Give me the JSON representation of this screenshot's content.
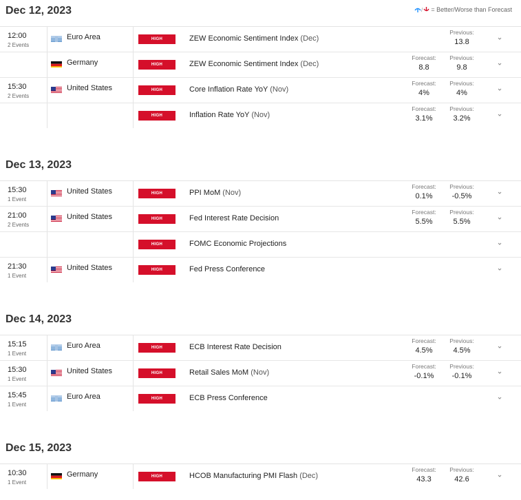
{
  "legend": {
    "text": "= Better/Worse than Forecast",
    "better_color": "#1e90ff",
    "worse_color": "#d50f2a"
  },
  "forecast_label": "Forecast:",
  "previous_label": "Previous:",
  "impact_label": "HIGH",
  "days": [
    {
      "date": "Dec 12, 2023",
      "rows": [
        {
          "time": "12:00",
          "count": "2 Events",
          "flag": "eu",
          "country": "Euro Area",
          "title": "ZEW Economic Sentiment Index",
          "period": "(Dec)",
          "forecast": null,
          "previous": "13.8"
        },
        {
          "time": "",
          "count": "",
          "flag": "de",
          "country": "Germany",
          "title": "ZEW Economic Sentiment Index",
          "period": "(Dec)",
          "forecast": "8.8",
          "previous": "9.8"
        },
        {
          "time": "15:30",
          "count": "2 Events",
          "flag": "us",
          "country": "United States",
          "title": "Core Inflation Rate YoY",
          "period": "(Nov)",
          "forecast": "4%",
          "previous": "4%"
        },
        {
          "time": "",
          "count": "",
          "flag": "",
          "country": "",
          "title": "Inflation Rate YoY",
          "period": "(Nov)",
          "forecast": "3.1%",
          "previous": "3.2%"
        }
      ]
    },
    {
      "date": "Dec 13, 2023",
      "rows": [
        {
          "time": "15:30",
          "count": "1 Event",
          "flag": "us",
          "country": "United States",
          "title": "PPI MoM",
          "period": "(Nov)",
          "forecast": "0.1%",
          "previous": "-0.5%"
        },
        {
          "time": "21:00",
          "count": "2 Events",
          "flag": "us",
          "country": "United States",
          "title": "Fed Interest Rate Decision",
          "period": "",
          "forecast": "5.5%",
          "previous": "5.5%"
        },
        {
          "time": "",
          "count": "",
          "flag": "",
          "country": "",
          "title": "FOMC Economic Projections",
          "period": "",
          "forecast": null,
          "previous": null
        },
        {
          "time": "21:30",
          "count": "1 Event",
          "flag": "us",
          "country": "United States",
          "title": "Fed Press Conference",
          "period": "",
          "forecast": null,
          "previous": null
        }
      ]
    },
    {
      "date": "Dec 14, 2023",
      "rows": [
        {
          "time": "15:15",
          "count": "1 Event",
          "flag": "eu",
          "country": "Euro Area",
          "title": "ECB Interest Rate Decision",
          "period": "",
          "forecast": "4.5%",
          "previous": "4.5%"
        },
        {
          "time": "15:30",
          "count": "1 Event",
          "flag": "us",
          "country": "United States",
          "title": "Retail Sales MoM",
          "period": "(Nov)",
          "forecast": "-0.1%",
          "previous": "-0.1%"
        },
        {
          "time": "15:45",
          "count": "1 Event",
          "flag": "eu",
          "country": "Euro Area",
          "title": "ECB Press Conference",
          "period": "",
          "forecast": null,
          "previous": null
        }
      ]
    },
    {
      "date": "Dec 15, 2023",
      "rows": [
        {
          "time": "10:30",
          "count": "1 Event",
          "flag": "de",
          "country": "Germany",
          "title": "HCOB Manufacturing PMI Flash",
          "period": "(Dec)",
          "forecast": "43.3",
          "previous": "42.6"
        }
      ]
    }
  ]
}
